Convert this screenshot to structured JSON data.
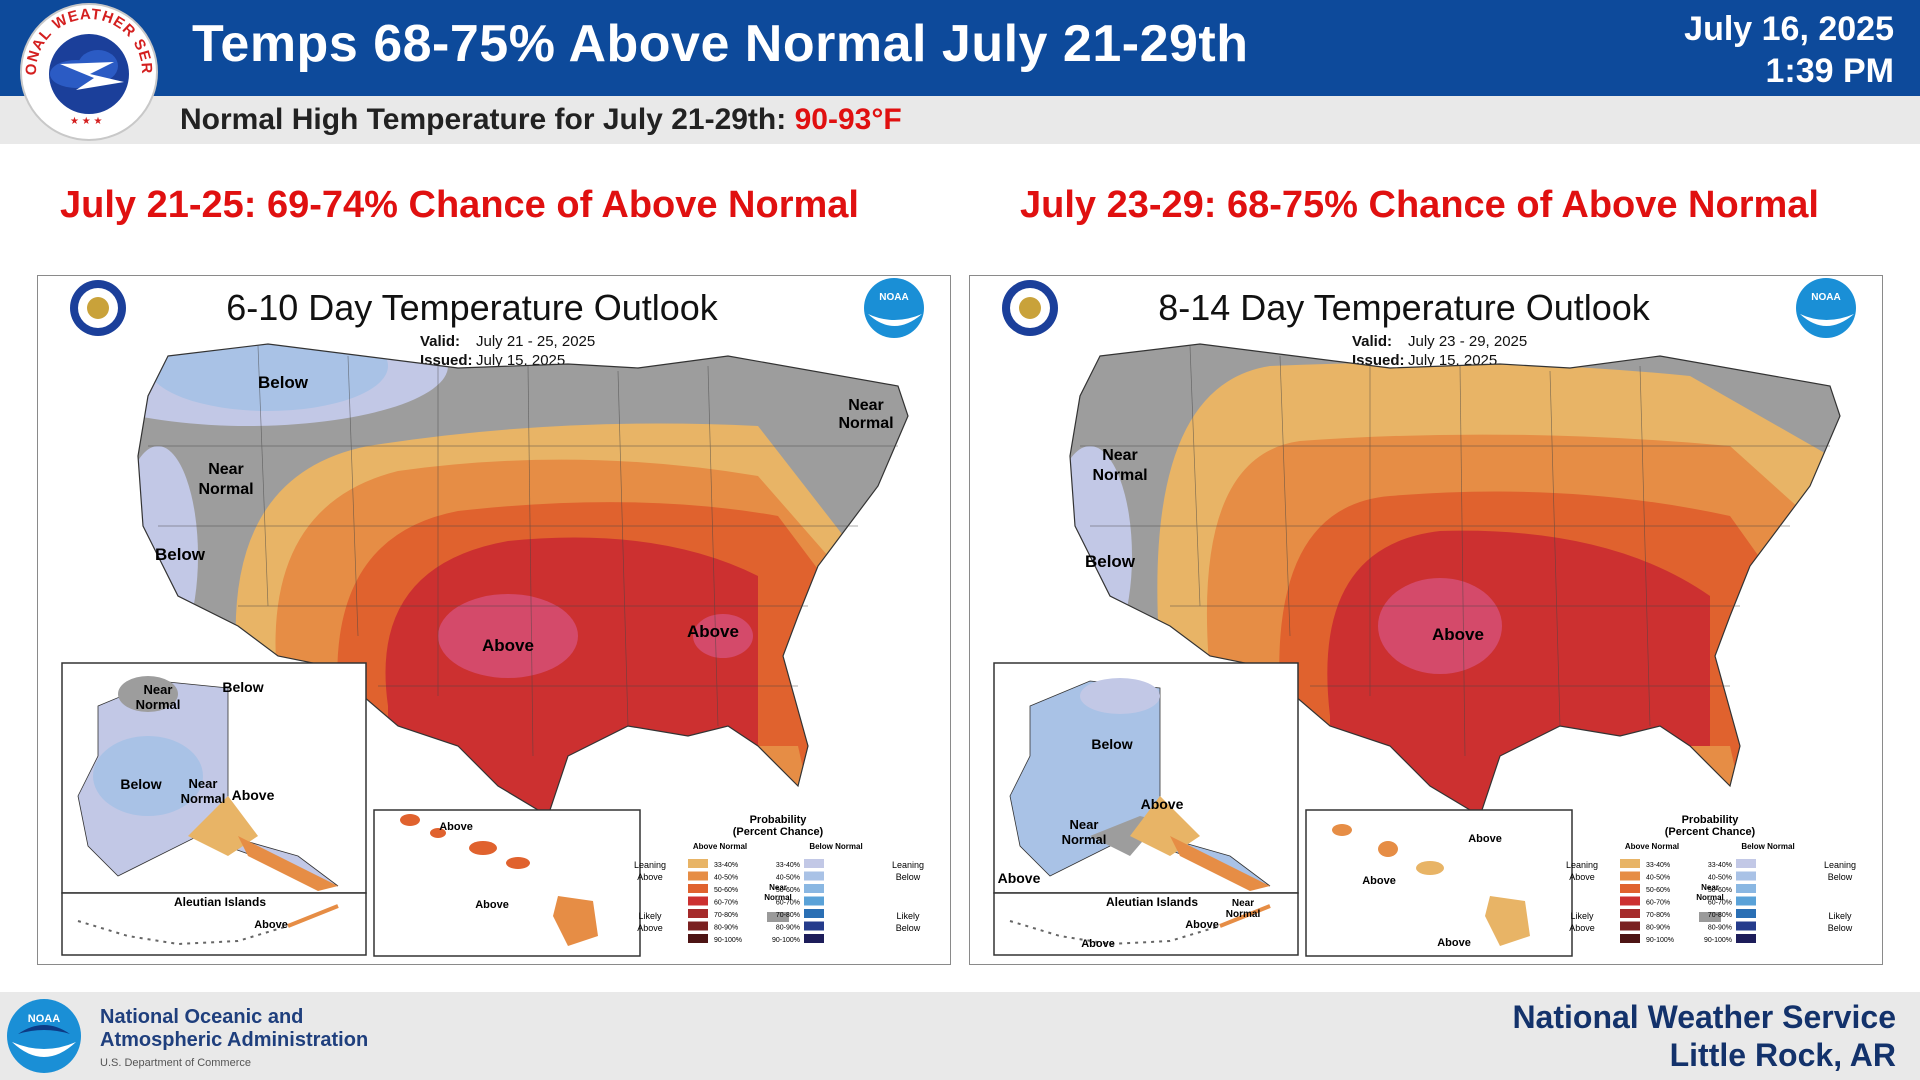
{
  "header": {
    "title": "Temps 68-75% Above Normal July 21-29th",
    "date": "July 16, 2025",
    "time": "1:39 PM",
    "logo_text": "NATIONAL WEATHER SERVICE"
  },
  "subheader": {
    "label": "Normal High Temperature for July 21-29th:",
    "value": "90-93°F"
  },
  "panels": [
    {
      "chance": "July 21-25: 69-74% Chance of Above Normal",
      "map_title": "6-10 Day Temperature Outlook",
      "valid_label": "Valid:",
      "valid": "July 21 - 25, 2025",
      "issued_label": "Issued:",
      "issued": "July 15, 2025",
      "labels": {
        "below_north": "Below",
        "near_ne_1": "Near",
        "near_ne_2": "Normal",
        "near_w_1": "Near",
        "near_w_2": "Normal",
        "below_w": "Below",
        "above_plains": "Above",
        "above_se": "Above",
        "ak_near_1": "Near",
        "ak_near_2": "Normal",
        "ak_below_ne": "Below",
        "ak_below_w": "Below",
        "ak_near_s_1": "Near",
        "ak_near_s_2": "Normal",
        "ak_above": "Above",
        "aleutian": "Aleutian Islands",
        "aleutian_above": "Above",
        "hi_above_1": "Above",
        "hi_above_2": "Above"
      }
    },
    {
      "chance": "July 23-29: 68-75% Chance of Above Normal",
      "map_title": "8-14 Day Temperature Outlook",
      "valid_label": "Valid:",
      "valid": "July 23 - 29, 2025",
      "issued_label": "Issued:",
      "issued": "July 15, 2025",
      "labels": {
        "near_w_1": "Near",
        "near_w_2": "Normal",
        "below_w": "Below",
        "above_center": "Above",
        "ak_below": "Below",
        "ak_near_1": "Near",
        "ak_near_2": "Normal",
        "ak_above": "Above",
        "ak_above_w": "Above",
        "aleutian": "Aleutian Islands",
        "aleutian_near_1": "Near",
        "aleutian_near_2": "Normal",
        "aleutian_above_1": "Above",
        "aleutian_above_2": "Above",
        "hi_above_1": "Above",
        "hi_above_2": "Above",
        "hi_above_3": "Above"
      }
    }
  ],
  "legend": {
    "title_1": "Probability",
    "title_2": "(Percent Chance)",
    "above_head": "Above Normal",
    "below_head": "Below Normal",
    "leaning_above_1": "Leaning",
    "leaning_above_2": "Above",
    "likely_above_1": "Likely",
    "likely_above_2": "Above",
    "leaning_below_1": "Leaning",
    "leaning_below_2": "Below",
    "likely_below_1": "Likely",
    "likely_below_2": "Below",
    "near_1": "Near",
    "near_2": "Normal",
    "ranges": [
      "33-40%",
      "40-50%",
      "50-60%",
      "60-70%",
      "70-80%",
      "80-90%",
      "90-100%"
    ],
    "above_colors": [
      "#e8b466",
      "#e68d45",
      "#e0622e",
      "#cc3030",
      "#a52a2a",
      "#7a2020",
      "#4d1414"
    ],
    "below_colors": [
      "#c2c8e6",
      "#a9c2e6",
      "#8ab7e2",
      "#5aa2d8",
      "#2a6fb4",
      "#253c8c",
      "#1d1d5a"
    ],
    "near_color": "#9a9a9a"
  },
  "footer": {
    "noaa_line1": "National Oceanic and",
    "noaa_line2": "Atmospheric Administration",
    "noaa_dept": "U.S. Department of Commerce",
    "nws_line1": "National Weather Service",
    "nws_line2": "Little Rock, AR",
    "noaa_badge": "NOAA"
  },
  "colors": {
    "header_blue": "#0d4a9b",
    "alert_red": "#e01010"
  }
}
